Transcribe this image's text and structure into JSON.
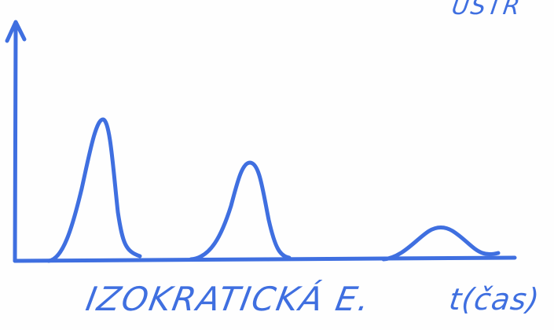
{
  "diagram": {
    "top_right_fragment": "ÚSTR",
    "elution_label": "IZOKRATICKÁ E.",
    "time_axis_label": "t(čas)",
    "ink_color": "#3f6fe0",
    "peak_count": 3
  }
}
